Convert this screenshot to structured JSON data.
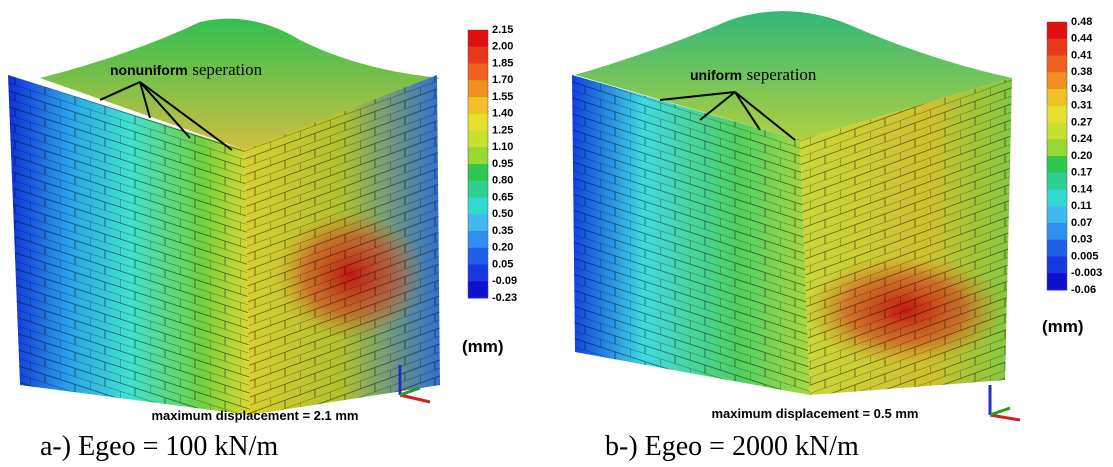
{
  "panels": [
    {
      "annotation": {
        "bold": "nonuniform",
        "text": "seperation"
      },
      "legend": {
        "labels": [
          "2.15",
          "2.00",
          "1.85",
          "1.70",
          "1.55",
          "1.40",
          "1.25",
          "1.10",
          "0.95",
          "0.80",
          "0.65",
          "0.50",
          "0.35",
          "0.20",
          "0.05",
          "-0.09",
          "-0.23"
        ],
        "unit": "(mm)"
      },
      "note": "maximum displacement = 2.1 mm",
      "caption": "a-) Egeo = 100 kN/m"
    },
    {
      "annotation": {
        "bold": "uniform",
        "text": "seperation"
      },
      "legend": {
        "labels": [
          "0.48",
          "0.44",
          "0.41",
          "0.38",
          "0.34",
          "0.31",
          "0.27",
          "0.24",
          "0.20",
          "0.17",
          "0.14",
          "0.11",
          "0.07",
          "0.03",
          "0.005",
          "-0.003",
          "-0.06"
        ],
        "unit": "(mm)"
      },
      "note": "maximum displacement = 0.5 mm",
      "caption": "b-) Egeo = 2000 kN/m"
    }
  ]
}
